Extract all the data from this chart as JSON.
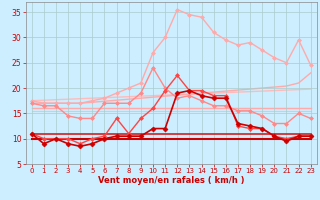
{
  "xlabel": "Vent moyen/en rafales ( km/h )",
  "bg_color": "#cceeff",
  "grid_color": "#aacccc",
  "xlim": [
    -0.5,
    23.5
  ],
  "ylim": [
    5,
    37
  ],
  "yticks": [
    5,
    10,
    15,
    20,
    25,
    30,
    35
  ],
  "xticks": [
    0,
    1,
    2,
    3,
    4,
    5,
    6,
    7,
    8,
    9,
    10,
    11,
    12,
    13,
    14,
    15,
    16,
    17,
    18,
    19,
    20,
    21,
    22,
    23
  ],
  "series": [
    {
      "x": [
        0,
        1,
        2,
        3,
        4,
        5,
        6,
        7,
        8,
        9,
        10,
        11,
        12,
        13,
        14,
        15,
        16,
        17,
        18,
        19,
        20,
        21,
        22,
        23
      ],
      "y": [
        17.5,
        17.6,
        17.7,
        17.8,
        17.9,
        18.0,
        18.1,
        18.2,
        18.3,
        18.4,
        18.5,
        18.6,
        18.7,
        18.8,
        18.9,
        19.0,
        19.1,
        19.2,
        19.3,
        19.4,
        19.5,
        19.6,
        19.7,
        19.8
      ],
      "color": "#ffbbbb",
      "lw": 1.0,
      "marker": null,
      "ms": 0,
      "zorder": 1
    },
    {
      "x": [
        0,
        1,
        2,
        3,
        4,
        5,
        6,
        7,
        8,
        9,
        10,
        11,
        12,
        13,
        14,
        15,
        16,
        17,
        18,
        19,
        20,
        21,
        22,
        23
      ],
      "y": [
        17.0,
        17.0,
        17.0,
        17.0,
        17.0,
        17.2,
        17.4,
        17.6,
        17.8,
        18.0,
        18.2,
        18.4,
        18.6,
        18.8,
        19.0,
        19.2,
        19.4,
        19.6,
        19.8,
        20.0,
        20.2,
        20.4,
        21.0,
        23.0
      ],
      "color": "#ffaaaa",
      "lw": 1.0,
      "marker": null,
      "ms": 0,
      "zorder": 1
    },
    {
      "x": [
        0,
        23
      ],
      "y": [
        16,
        16
      ],
      "color": "#ffaaaa",
      "lw": 1.0,
      "marker": null,
      "ms": 0,
      "zorder": 1
    },
    {
      "x": [
        0,
        23
      ],
      "y": [
        15.5,
        15.5
      ],
      "color": "#ffbbbb",
      "lw": 0.8,
      "marker": null,
      "ms": 0,
      "zorder": 1
    },
    {
      "x": [
        0,
        23
      ],
      "y": [
        11,
        11
      ],
      "color": "#cc2222",
      "lw": 1.2,
      "marker": null,
      "ms": 0,
      "zorder": 2
    },
    {
      "x": [
        0,
        23
      ],
      "y": [
        10,
        10
      ],
      "color": "#cc0000",
      "lw": 1.5,
      "marker": null,
      "ms": 0,
      "zorder": 2
    },
    {
      "x": [
        0,
        1,
        2,
        3,
        4,
        5,
        6,
        7,
        8,
        9,
        10,
        11,
        12,
        13,
        14,
        15,
        16,
        17,
        18,
        19,
        20,
        21,
        22,
        23
      ],
      "y": [
        17.5,
        17.0,
        17.0,
        17.0,
        17.0,
        17.5,
        18.0,
        19.0,
        20.0,
        21.0,
        27.0,
        30.0,
        35.5,
        34.5,
        34.0,
        31.0,
        29.5,
        28.5,
        29.0,
        27.5,
        26.0,
        25.0,
        29.5,
        24.5
      ],
      "color": "#ffaaaa",
      "lw": 1.0,
      "marker": "D",
      "ms": 2.0,
      "zorder": 3
    },
    {
      "x": [
        0,
        1,
        2,
        3,
        4,
        5,
        6,
        7,
        8,
        9,
        10,
        11,
        12,
        13,
        14,
        15,
        16,
        17,
        18,
        19,
        20,
        21,
        22,
        23
      ],
      "y": [
        17.0,
        16.5,
        16.5,
        14.5,
        14.0,
        14.0,
        17.0,
        17.0,
        17.0,
        19.0,
        24.0,
        20.0,
        18.0,
        18.5,
        17.5,
        16.5,
        16.5,
        15.5,
        15.5,
        14.5,
        13.0,
        13.0,
        15.0,
        14.0
      ],
      "color": "#ff8888",
      "lw": 1.0,
      "marker": "D",
      "ms": 2.0,
      "zorder": 3
    },
    {
      "x": [
        0,
        1,
        2,
        3,
        4,
        5,
        6,
        7,
        8,
        9,
        10,
        11,
        12,
        13,
        14,
        15,
        16,
        17,
        18,
        19,
        20,
        21,
        22,
        23
      ],
      "y": [
        11.0,
        10.0,
        10.0,
        10.0,
        9.0,
        10.0,
        10.5,
        14.0,
        11.0,
        14.0,
        16.0,
        19.5,
        22.5,
        19.5,
        19.5,
        18.5,
        18.5,
        12.5,
        12.0,
        12.0,
        10.5,
        10.0,
        10.5,
        10.5
      ],
      "color": "#ff4444",
      "lw": 1.0,
      "marker": "D",
      "ms": 2.0,
      "zorder": 4
    },
    {
      "x": [
        0,
        1,
        2,
        3,
        4,
        5,
        6,
        7,
        8,
        9,
        10,
        11,
        12,
        13,
        14,
        15,
        16,
        17,
        18,
        19,
        20,
        21,
        22,
        23
      ],
      "y": [
        11.0,
        9.0,
        10.0,
        9.0,
        8.5,
        9.0,
        10.0,
        10.5,
        10.5,
        10.5,
        12.0,
        12.0,
        19.0,
        19.5,
        18.5,
        18.0,
        18.0,
        13.0,
        12.5,
        12.0,
        10.5,
        9.5,
        10.5,
        10.5
      ],
      "color": "#cc0000",
      "lw": 1.2,
      "marker": "D",
      "ms": 2.5,
      "zorder": 5
    }
  ]
}
